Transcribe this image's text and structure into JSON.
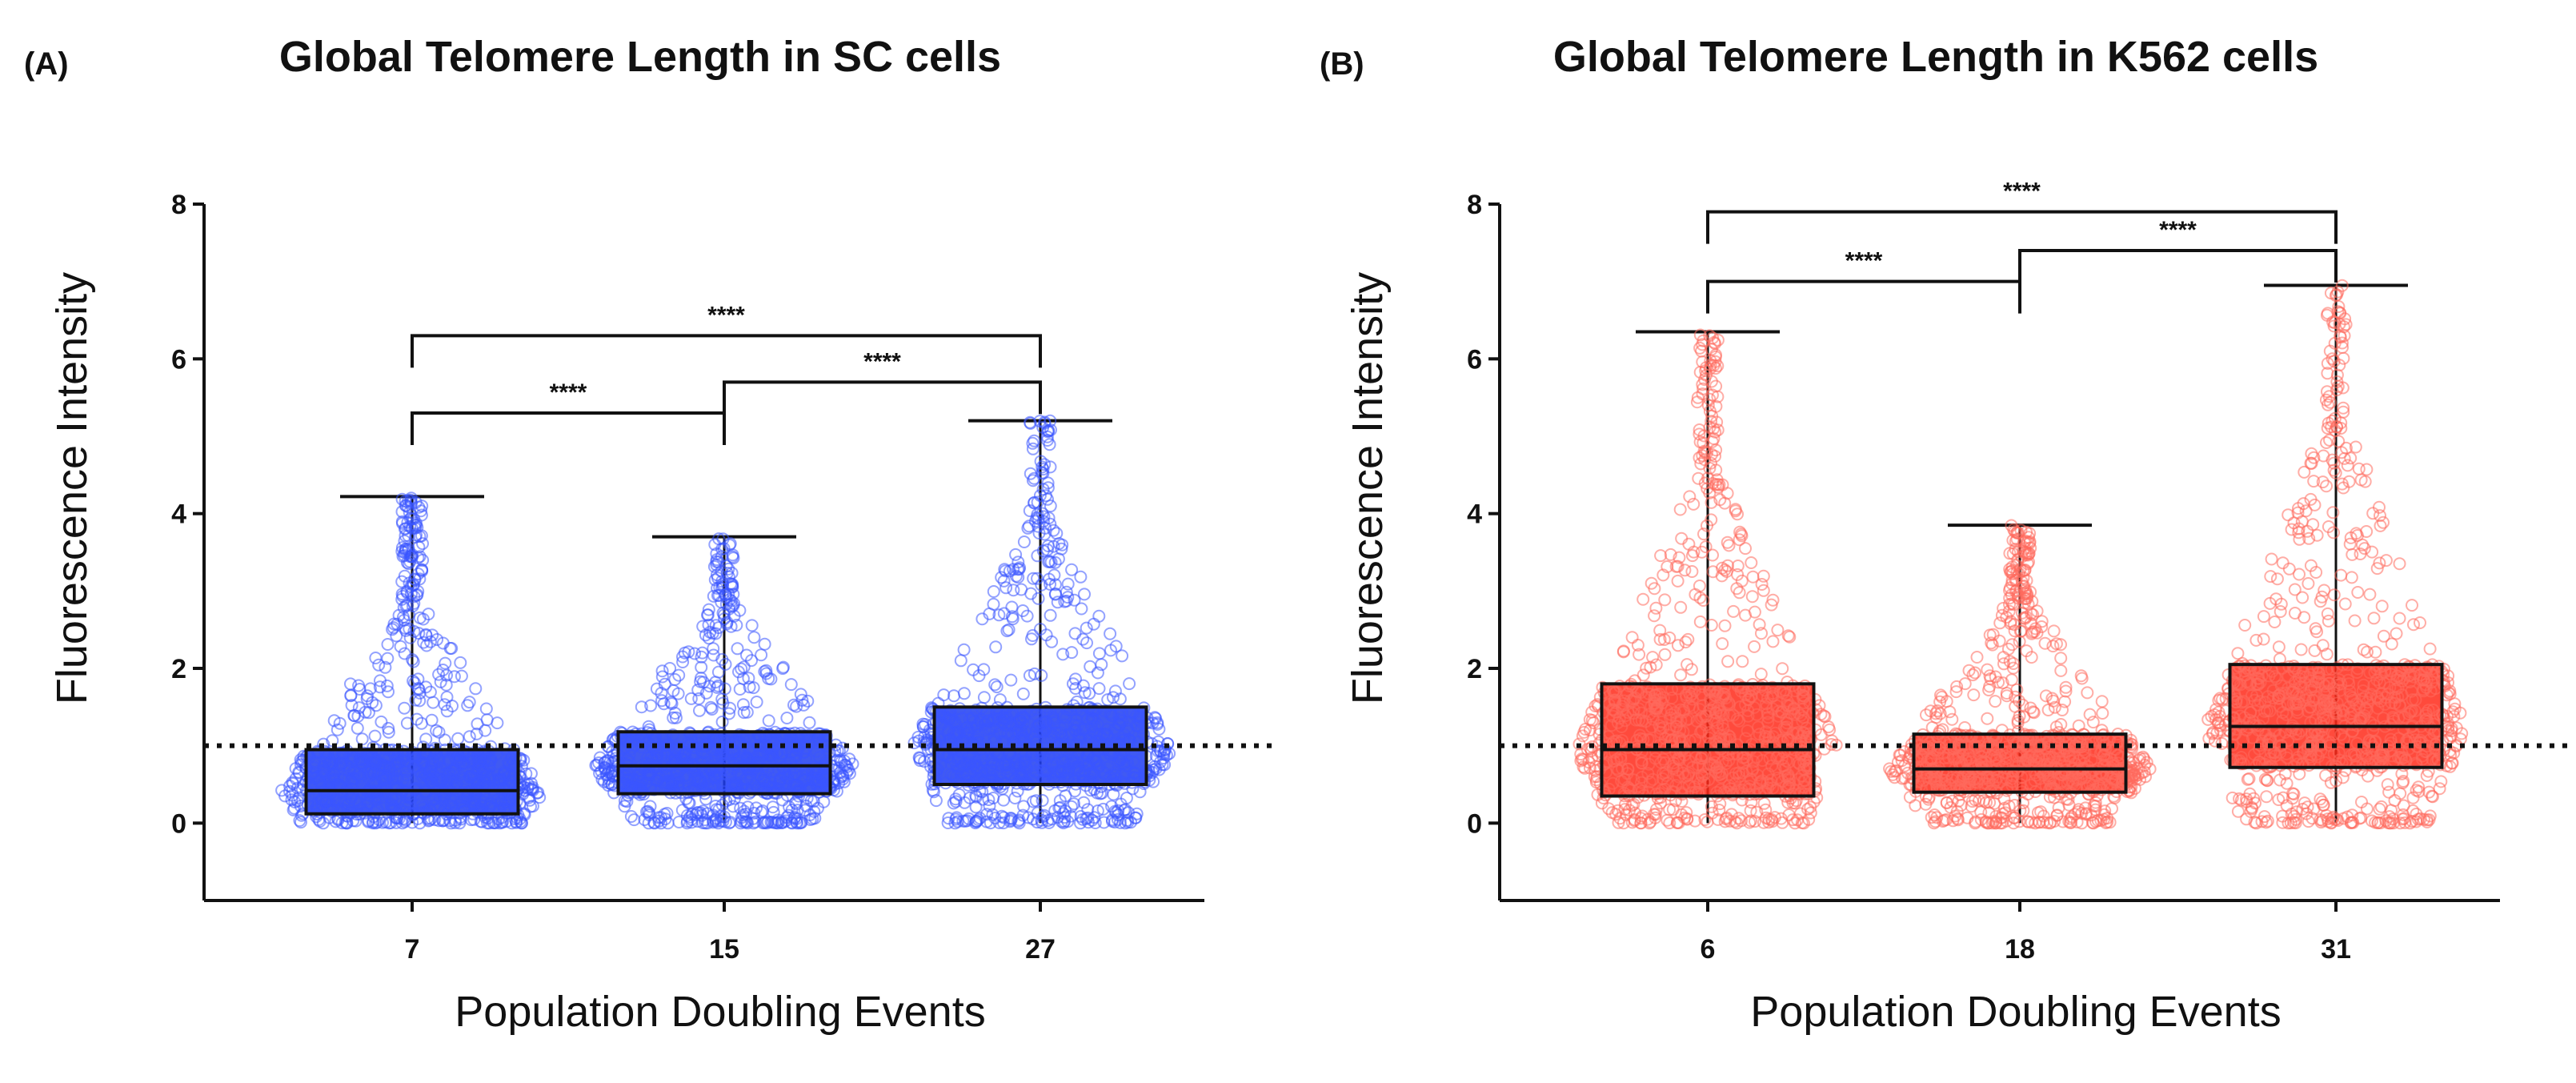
{
  "chart_data": [
    {
      "type": "box",
      "panel_label": "(A)",
      "title": "Global Telomere Length in SC cells",
      "xlabel": "Population Doubling Events",
      "ylabel": "Fluorescence Intensity",
      "ylim": [
        -1,
        8
      ],
      "yticks": [
        "0",
        "2",
        "4",
        "6",
        "8"
      ],
      "categories": [
        "7",
        "15",
        "27"
      ],
      "reference_line": 1,
      "color": "#1f3df0",
      "point_color": "#3a56ff",
      "boxes": [
        {
          "min": 0.0,
          "q1": 0.12,
          "median": 0.42,
          "q3": 0.95,
          "max": 4.22
        },
        {
          "min": 0.0,
          "q1": 0.38,
          "median": 0.74,
          "q3": 1.18,
          "max": 3.7
        },
        {
          "min": 0.0,
          "q1": 0.5,
          "median": 0.95,
          "q3": 1.5,
          "max": 5.2
        }
      ],
      "significance": [
        {
          "from": 0,
          "to": 2,
          "y": 6.3,
          "label": "****"
        },
        {
          "from": 0,
          "to": 1,
          "y": 5.3,
          "label": "****"
        },
        {
          "from": 1,
          "to": 2,
          "y": 5.7,
          "label": "****"
        }
      ]
    },
    {
      "type": "box",
      "panel_label": "(B)",
      "title": "Global Telomere Length in K562 cells",
      "xlabel": "Population Doubling Events",
      "ylabel": "Fluorescence Intensity",
      "ylim": [
        -1,
        8
      ],
      "yticks": [
        "0",
        "2",
        "4",
        "6",
        "8"
      ],
      "categories": [
        "6",
        "18",
        "31"
      ],
      "reference_line": 1,
      "color": "#ff2a1a",
      "point_color": "#ff6a5c",
      "boxes": [
        {
          "min": 0.0,
          "q1": 0.35,
          "median": 0.95,
          "q3": 1.8,
          "max": 6.35
        },
        {
          "min": 0.0,
          "q1": 0.4,
          "median": 0.7,
          "q3": 1.15,
          "max": 3.85
        },
        {
          "min": 0.0,
          "q1": 0.72,
          "median": 1.25,
          "q3": 2.05,
          "max": 6.95
        }
      ],
      "significance": [
        {
          "from": 0,
          "to": 2,
          "y": 7.9,
          "label": "****"
        },
        {
          "from": 0,
          "to": 1,
          "y": 7.0,
          "label": "****"
        },
        {
          "from": 1,
          "to": 2,
          "y": 7.4,
          "label": "****"
        }
      ]
    }
  ]
}
